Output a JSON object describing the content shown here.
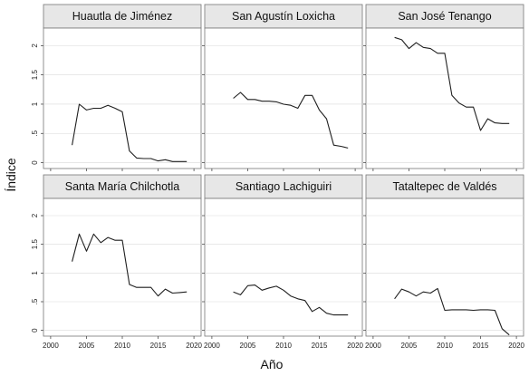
{
  "chart_data": {
    "type": "line",
    "layout": "small-multiples",
    "xlabel": "Año",
    "ylabel": "Índice",
    "xlim": [
      1999,
      2021
    ],
    "ylim": [
      -0.1,
      2.3
    ],
    "x_ticks": [
      2000,
      2005,
      2010,
      2015,
      2020
    ],
    "y_ticks": [
      0,
      0.5,
      1,
      1.5,
      2
    ],
    "y_tick_labels": [
      "0",
      ".5",
      "1",
      "1.5",
      "2"
    ],
    "x_tick_labels_shown_on_bottom_row": true,
    "y_tick_labels_shown_on_left_column": true,
    "grid": true,
    "panels": [
      {
        "title": "Huautla de Jiménez",
        "x": [
          2003,
          2004,
          2005,
          2006,
          2007,
          2008,
          2009,
          2010,
          2011,
          2012,
          2013,
          2014,
          2015,
          2016,
          2017,
          2018,
          2019
        ],
        "y": [
          0.3,
          1.0,
          0.9,
          0.93,
          0.93,
          0.98,
          0.93,
          0.87,
          0.2,
          0.08,
          0.07,
          0.07,
          0.03,
          0.05,
          0.02,
          0.02,
          0.02
        ]
      },
      {
        "title": "San Agustín Loxicha",
        "x": [
          2003,
          2004,
          2005,
          2006,
          2007,
          2008,
          2009,
          2010,
          2011,
          2012,
          2013,
          2014,
          2015,
          2016,
          2017,
          2018,
          2019
        ],
        "y": [
          1.1,
          1.2,
          1.08,
          1.08,
          1.05,
          1.05,
          1.04,
          1.0,
          0.98,
          0.93,
          1.15,
          1.15,
          0.9,
          0.75,
          0.3,
          0.28,
          0.25
        ]
      },
      {
        "title": "San José Tenango",
        "x": [
          2003,
          2004,
          2005,
          2006,
          2007,
          2008,
          2009,
          2010,
          2011,
          2012,
          2013,
          2014,
          2015,
          2016,
          2017,
          2018,
          2019
        ],
        "y": [
          2.14,
          2.1,
          1.95,
          2.05,
          1.97,
          1.95,
          1.87,
          1.87,
          1.15,
          1.02,
          0.95,
          0.95,
          0.55,
          0.75,
          0.68,
          0.67,
          0.67
        ]
      },
      {
        "title": "Santa María Chilchotla",
        "x": [
          2003,
          2004,
          2005,
          2006,
          2007,
          2008,
          2009,
          2010,
          2011,
          2012,
          2013,
          2014,
          2015,
          2016,
          2017,
          2018,
          2019
        ],
        "y": [
          1.2,
          1.68,
          1.38,
          1.68,
          1.53,
          1.62,
          1.57,
          1.57,
          0.8,
          0.75,
          0.75,
          0.75,
          0.6,
          0.72,
          0.65,
          0.66,
          0.67
        ]
      },
      {
        "title": "Santiago Lachiguiri",
        "x": [
          2003,
          2004,
          2005,
          2006,
          2007,
          2008,
          2009,
          2010,
          2011,
          2012,
          2013,
          2014,
          2015,
          2016,
          2017,
          2018,
          2019
        ],
        "y": [
          0.67,
          0.62,
          0.78,
          0.79,
          0.7,
          0.74,
          0.77,
          0.7,
          0.6,
          0.55,
          0.52,
          0.33,
          0.4,
          0.3,
          0.27,
          0.27,
          0.27
        ]
      },
      {
        "title": "Tataltepec de Valdés",
        "x": [
          2003,
          2004,
          2005,
          2006,
          2007,
          2008,
          2009,
          2010,
          2011,
          2012,
          2013,
          2014,
          2015,
          2016,
          2017,
          2018,
          2019
        ],
        "y": [
          0.55,
          0.72,
          0.67,
          0.6,
          0.67,
          0.65,
          0.73,
          0.35,
          0.36,
          0.36,
          0.36,
          0.35,
          0.36,
          0.36,
          0.35,
          0.03,
          -0.08
        ]
      }
    ]
  }
}
